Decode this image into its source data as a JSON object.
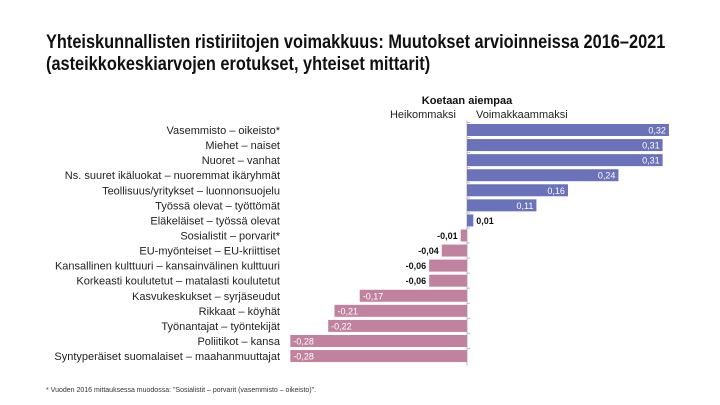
{
  "title": {
    "line1": "Yhteiskunnallisten ristiriitojen voimakkuus: Muutokset arvioinneissa 2016–2021",
    "line2": "(asteikkokeskiarvojen erotukset, yhteiset mittarit)"
  },
  "footnote": "* Vuoden 2016 mittauksessa muodossa: \"Sosialistit – porvarit (vasemmisto – oikeisto)\".",
  "chart_data": {
    "type": "bar",
    "orientation": "horizontal",
    "header": "Koetaan aiempaa",
    "negative_label": "Heikommaksi",
    "positive_label": "Voimakkaammaksi",
    "categories": [
      "Vasemmisto – oikeisto*",
      "Miehet – naiset",
      "Nuoret – vanhat",
      "Ns. suuret ikäluokat – nuoremmat ikäryhmät",
      "Teollisuus/yritykset – luonnonsuojelu",
      "Työssä olevat – työttömät",
      "Eläkeläiset – työssä olevat",
      "Sosialistit – porvarit*",
      "EU-myönteiset – EU-kriittiset",
      "Kansallinen kulttuuri – kansainvälinen kulttuuri",
      "Korkeasti koulutetut – matalasti koulutetut",
      "Kasvukeskukset – syrjäseudut",
      "Rikkaat – köyhät",
      "Työnantajat – työntekijät",
      "Poliitikot – kansa",
      "Syntyperäiset suomalaiset – maahanmuuttajat"
    ],
    "values": [
      0.32,
      0.31,
      0.31,
      0.24,
      0.16,
      0.11,
      0.01,
      -0.01,
      -0.04,
      -0.06,
      -0.06,
      -0.17,
      -0.21,
      -0.22,
      -0.28,
      -0.28
    ],
    "labels": [
      "0,32",
      "0,31",
      "0,31",
      "0,24",
      "0,16",
      "0,11",
      "0,01",
      "-0,01",
      "-0,04",
      "-0,06",
      "-0,06",
      "-0,17",
      "-0,21",
      "-0,22",
      "-0,28",
      "-0,28"
    ],
    "xlim": [
      -0.28,
      0.32
    ],
    "grid": false,
    "colors": {
      "positive": "#6a72b9",
      "negative": "#c0829e"
    }
  }
}
